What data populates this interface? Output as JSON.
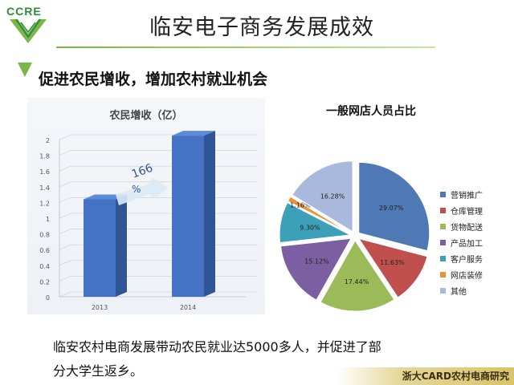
{
  "logo": {
    "text": "CCRE",
    "colors": [
      "#2e8b3a",
      "#7ab648"
    ]
  },
  "page": {
    "title": "临安电子商务发展成效",
    "subtitle": "促进农民增收，增加农村就业机会",
    "bottom_text": "临安农村电商发展带动农民就业达5000多人，并促进了部分大学生返乡。",
    "footer": "浙大CARD农村电商研究"
  },
  "chart_data": [
    {
      "type": "bar",
      "title": "农民增收（亿）",
      "categories": [
        "2013",
        "2014"
      ],
      "values": [
        1.24,
        2.05
      ],
      "ylim": [
        0,
        2
      ],
      "yticks": [
        "0",
        "0.2",
        "0.4",
        "0.6",
        "0.8",
        "1",
        "1.2",
        "1.4",
        "1.6",
        "1.8",
        "2"
      ],
      "annotation": "166%",
      "bar_color": "#4472c4",
      "grid": true
    },
    {
      "type": "pie",
      "title": "一般网店人员占比",
      "legend_position": "right",
      "slices": [
        {
          "name": "营销推广",
          "value": 29.07,
          "label": "29.07%",
          "color": "#4e79b5"
        },
        {
          "name": "仓库管理",
          "value": 11.63,
          "label": "11.63%",
          "color": "#c0504d"
        },
        {
          "name": "货物配送",
          "value": 17.44,
          "label": "17.44%",
          "color": "#9bbb59"
        },
        {
          "name": "产品加工",
          "value": 15.12,
          "label": "15.12%",
          "color": "#7c5ea3"
        },
        {
          "name": "客户服务",
          "value": 9.3,
          "label": "9.30%",
          "color": "#3ca0b8"
        },
        {
          "name": "网店装修",
          "value": 1.16,
          "label": "1.16%",
          "color": "#e8923a"
        },
        {
          "name": "其他",
          "value": 16.28,
          "label": "16.28%",
          "color": "#a9b9dd"
        }
      ]
    }
  ]
}
